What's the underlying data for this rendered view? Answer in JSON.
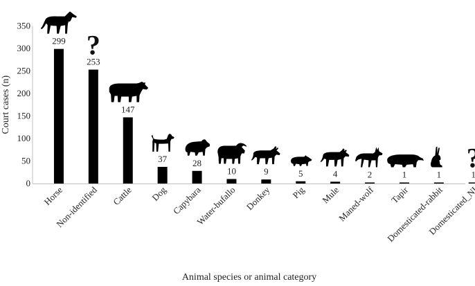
{
  "chart_data": {
    "type": "bar",
    "title": "",
    "xlabel": "Animal species or animal category",
    "ylabel": "Court cases (n)",
    "ylim": [
      0,
      350
    ],
    "yticks": [
      0,
      50,
      100,
      150,
      200,
      250,
      300,
      350
    ],
    "grid": false,
    "categories": [
      "Horse",
      "Non-identified",
      "Cattle",
      "Dog",
      "Capybara",
      "Water-bufallo",
      "Donkey",
      "Pig",
      "Mule",
      "Maned-wolf",
      "Tapir",
      "Domesticated-rabbit",
      "Domesticated_NI"
    ],
    "values": [
      299,
      253,
      147,
      37,
      28,
      10,
      9,
      5,
      4,
      2,
      1,
      1,
      1
    ],
    "icons": [
      "horse-icon",
      "question-mark-icon",
      "cattle-icon",
      "dog-icon",
      "capybara-icon",
      "water-buffalo-icon",
      "donkey-icon",
      "pig-icon",
      "mule-icon",
      "maned-wolf-icon",
      "tapir-icon",
      "rabbit-icon",
      "question-mark-icon"
    ],
    "bar_color": "#000000"
  }
}
